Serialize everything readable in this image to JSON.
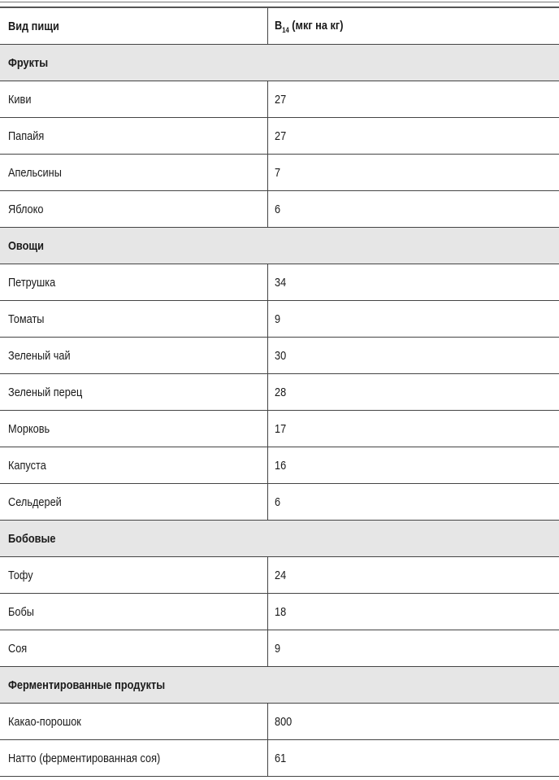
{
  "header": {
    "col1": "Вид пищи",
    "col2_main": "B",
    "col2_sub": "14",
    "col2_rest": " (мкг на кг)"
  },
  "groups": [
    {
      "name": "Фрукты",
      "rows": [
        {
          "food": "Киви",
          "value": "27"
        },
        {
          "food": "Папайя",
          "value": "27"
        },
        {
          "food": "Апельсины",
          "value": "7"
        },
        {
          "food": "Яблоко",
          "value": "6"
        }
      ]
    },
    {
      "name": "Овощи",
      "rows": [
        {
          "food": "Петрушка",
          "value": "34"
        },
        {
          "food": "Томаты",
          "value": "9"
        },
        {
          "food": "Зеленый чай",
          "value": "30"
        },
        {
          "food": "Зеленый перец",
          "value": "28"
        },
        {
          "food": "Морковь",
          "value": "17"
        },
        {
          "food": "Капуста",
          "value": "16"
        },
        {
          "food": "Сельдерей",
          "value": "6"
        }
      ]
    },
    {
      "name": "Бобовые",
      "rows": [
        {
          "food": "Тофу",
          "value": "24"
        },
        {
          "food": "Бобы",
          "value": "18"
        },
        {
          "food": "Соя",
          "value": "9"
        }
      ]
    },
    {
      "name": "Ферментированные продукты",
      "rows": [
        {
          "food": "Какао-порошок",
          "value": "800"
        },
        {
          "food": "Натто (ферментированная соя)",
          "value": "61"
        }
      ]
    }
  ]
}
